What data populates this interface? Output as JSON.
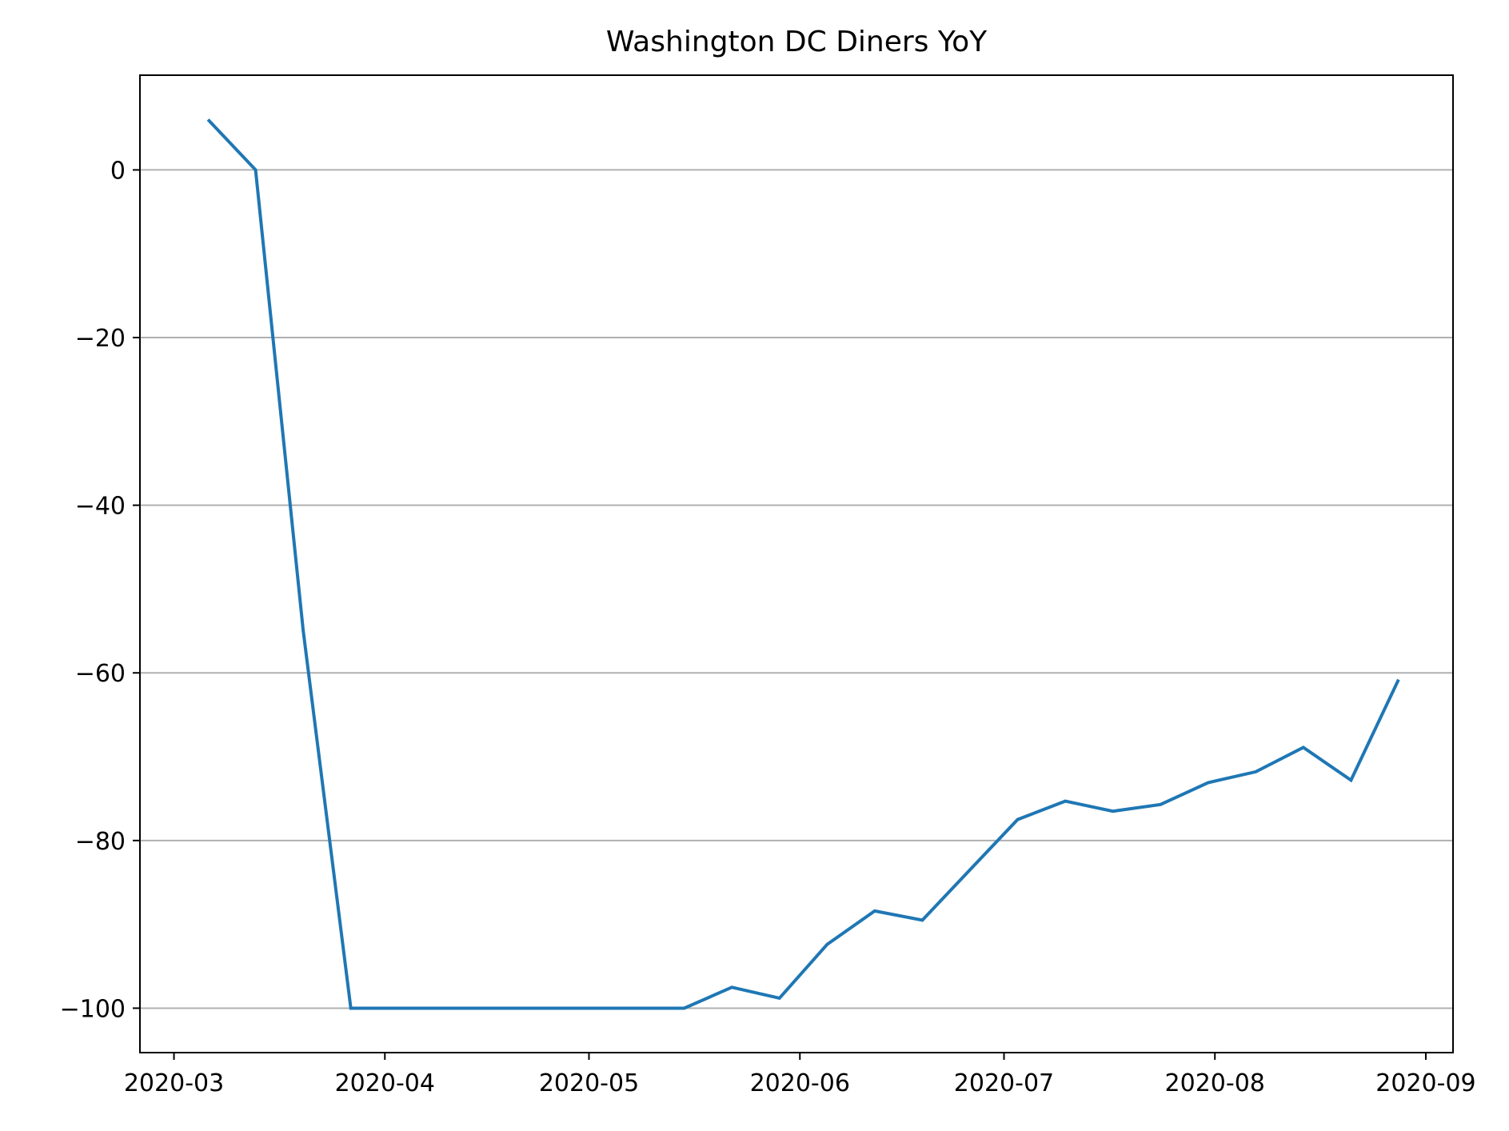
{
  "chart_data": {
    "type": "line",
    "title": "Washington DC Diners YoY",
    "xlabel": "",
    "ylabel": "",
    "x_tick_labels": [
      "2020-03",
      "2020-04",
      "2020-05",
      "2020-06",
      "2020-07",
      "2020-08",
      "2020-09"
    ],
    "x_tick_dates": [
      "2020-03-01",
      "2020-04-01",
      "2020-05-01",
      "2020-06-01",
      "2020-07-01",
      "2020-08-01",
      "2020-09-01"
    ],
    "y_ticks": [
      0,
      -20,
      -40,
      -60,
      -80,
      -100
    ],
    "y_tick_labels": [
      "0",
      "−20",
      "−40",
      "−60",
      "−80",
      "−100"
    ],
    "xlim": [
      "2020-02-25",
      "2020-09-05"
    ],
    "ylim": [
      -105.3,
      11.3
    ],
    "grid": "y",
    "line_color": "#1f77b4",
    "grid_color": "#b0b0b0",
    "series": [
      {
        "x": [
          "2020-03-06",
          "2020-03-13",
          "2020-03-20",
          "2020-03-27",
          "2020-04-03",
          "2020-04-10",
          "2020-04-17",
          "2020-04-24",
          "2020-05-01",
          "2020-05-08",
          "2020-05-15",
          "2020-05-22",
          "2020-05-29",
          "2020-06-05",
          "2020-06-12",
          "2020-06-19",
          "2020-06-26",
          "2020-07-03",
          "2020-07-10",
          "2020-07-17",
          "2020-07-24",
          "2020-07-31",
          "2020-08-07",
          "2020-08-14",
          "2020-08-21",
          "2020-08-28"
        ],
        "values": [
          6,
          0,
          -55,
          -100,
          -100,
          -100,
          -100,
          -100,
          -100,
          -100,
          -100,
          -97.5,
          -98.8,
          -92.4,
          -88.4,
          -89.5,
          -83.5,
          -77.5,
          -75.3,
          -76.5,
          -75.7,
          -73.1,
          -71.8,
          -68.9,
          -72.8,
          -60.8
        ]
      }
    ]
  }
}
